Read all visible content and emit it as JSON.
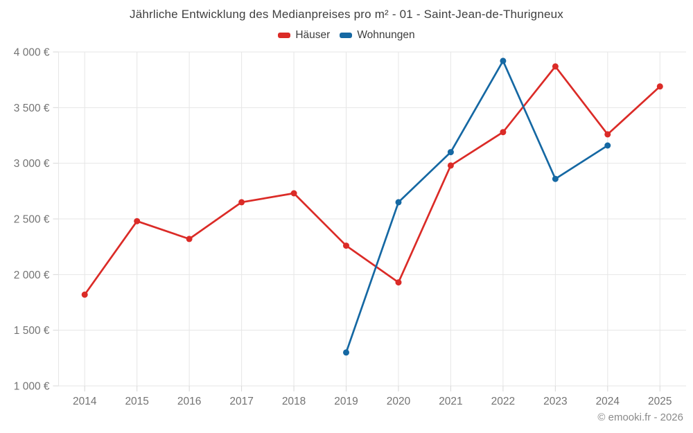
{
  "header": {
    "title": "Jährliche Entwicklung des Medianpreises pro m² - 01 - Saint-Jean-de-Thurigneux"
  },
  "legend": {
    "items": [
      {
        "label": "Häuser",
        "color": "#db2b27"
      },
      {
        "label": "Wohnungen",
        "color": "#1568a3"
      }
    ]
  },
  "footer": {
    "copyright": "© emooki.fr - 2026"
  },
  "chart_data": {
    "type": "line",
    "title": "Jährliche Entwicklung des Medianpreises pro m² - 01 - Saint-Jean-de-Thurigneux",
    "categories": [
      "2014",
      "2015",
      "2016",
      "2017",
      "2018",
      "2019",
      "2020",
      "2021",
      "2022",
      "2023",
      "2024",
      "2025"
    ],
    "series": [
      {
        "name": "Häuser",
        "color": "#db2b27",
        "values": [
          1820,
          2480,
          2320,
          2650,
          2730,
          2260,
          1930,
          2980,
          3280,
          3870,
          3260,
          3690
        ]
      },
      {
        "name": "Wohnungen",
        "color": "#1568a3",
        "values": [
          null,
          null,
          null,
          null,
          null,
          1300,
          2650,
          3100,
          3920,
          2860,
          3160,
          null
        ]
      }
    ],
    "y_axis": {
      "min": 1000,
      "max": 4000,
      "tick_step": 500,
      "tick_labels": [
        "1 000 €",
        "1 500 €",
        "2 000 €",
        "2 500 €",
        "3 000 €",
        "3 500 €",
        "4 000 €"
      ],
      "unit": "€"
    },
    "grid": true,
    "legend_position": "top"
  }
}
